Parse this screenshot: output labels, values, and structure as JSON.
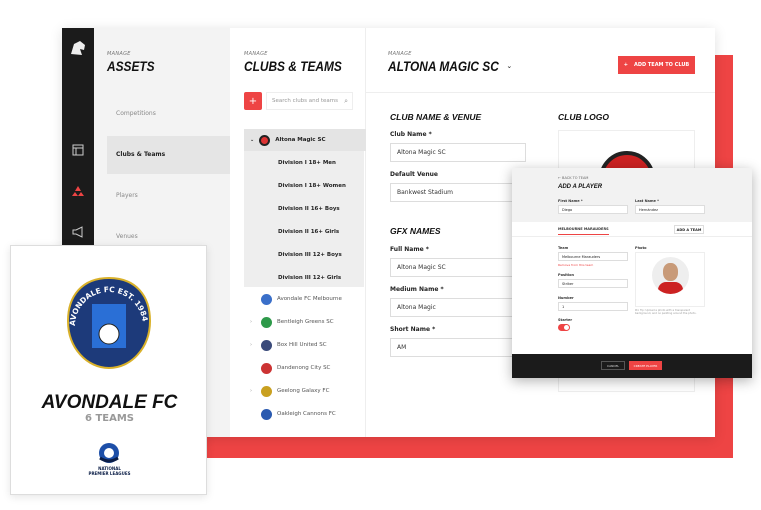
{
  "sidebar": {
    "icons": [
      "lion-logo",
      "layout-icon",
      "teams-icon",
      "megaphone-icon"
    ]
  },
  "assets": {
    "kicker": "MANAGE",
    "title": "ASSETS",
    "nav": [
      "Competitions",
      "Clubs & Teams",
      "Players",
      "Venues"
    ],
    "selected": "Clubs & Teams"
  },
  "clubs": {
    "kicker": "MANAGE",
    "title": "CLUBS & TEAMS",
    "search_placeholder": "Search clubs and teams",
    "expanded": {
      "name": "Altona Magic SC",
      "teams": [
        "Division I 18+ Men",
        "Division I 18+ Women",
        "Division II 16+ Boys",
        "Division II 16+ Girls",
        "Division III 12+ Boys",
        "Division III 12+ Girls"
      ]
    },
    "others": [
      "Avondale FC Melbourne",
      "Bentleigh Greens SC",
      "Box Hill United SC",
      "Dandenong City SC",
      "Geelong Galaxy FC",
      "Oakleigh Cannons FC"
    ]
  },
  "main": {
    "kicker": "MANAGE",
    "title": "ALTONA MAGIC SC",
    "add_team": "ADD TEAM TO CLUB",
    "section1": "CLUB NAME & VENUE",
    "club_name_label": "Club Name *",
    "club_name": "Altona Magic SC",
    "venue_label": "Default Venue",
    "venue": "Bankwest Stadium",
    "section2": "GFX NAMES",
    "full_label": "Full Name *",
    "full": "Altona Magic SC",
    "medium_label": "Medium Name *",
    "medium": "Altona Magic",
    "short_label": "Short Name *",
    "short": "AM",
    "logo_title": "CLUB LOGO"
  },
  "modal": {
    "back": "BACK TO TEAM",
    "title": "ADD A PLAYER",
    "first_label": "First Name *",
    "first": "Diego",
    "last_label": "Last Name *",
    "last": "Hernández",
    "tab": "MELBOURNE MARAUDERS",
    "add_team": "ADD A TEAM",
    "team_label": "Team",
    "team": "Melbourne Marauders",
    "remove": "Remove from this team",
    "position_label": "Position",
    "position": "Striker",
    "number_label": "Number",
    "number": "1",
    "starter_label": "Starter",
    "starter": true,
    "photo_label": "Photo",
    "photo_tip": "Pro Tip: Upload a photo with a transparent background, and no padding around the photo.",
    "cancel": "CANCEL",
    "create": "CREATE PLAYER"
  },
  "card": {
    "name": "AVONDALE FC",
    "teams": "6 TEAMS",
    "crest_text": "AVONDALE FC EST. 1984",
    "league": "NATIONAL PREMIER LEAGUES"
  },
  "colors": {
    "accent": "#ee4444",
    "dark": "#1b1b1b"
  }
}
